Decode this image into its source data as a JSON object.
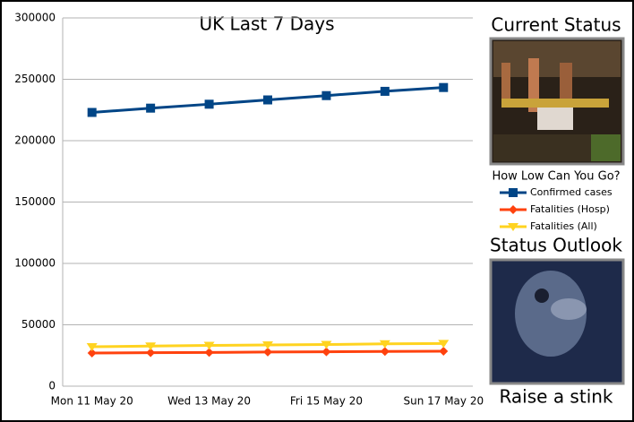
{
  "chart_data": {
    "type": "line",
    "title": "UK Last 7 Days",
    "categories": [
      "Mon 11 May 20",
      null,
      "Wed 13 May 20",
      null,
      "Fri 15 May 20",
      null,
      "Sun 17 May 20"
    ],
    "series": [
      {
        "name": "Confirmed cases",
        "color": "#004586",
        "marker": "square",
        "values": [
          223000,
          226500,
          229700,
          233200,
          236700,
          240200,
          243300
        ]
      },
      {
        "name": "Fatalities (Hosp)",
        "color": "#ff420e",
        "marker": "diamond",
        "values": [
          27000,
          27300,
          27500,
          27800,
          28000,
          28300,
          28500
        ]
      },
      {
        "name": "Fatalities (All)",
        "color": "#ffd320",
        "marker": "triangle-down",
        "values": [
          32100,
          32700,
          33200,
          33600,
          33900,
          34500,
          34800
        ]
      }
    ],
    "ylim": [
      0,
      300000
    ],
    "yticks": [
      0,
      50000,
      100000,
      150000,
      200000,
      250000,
      300000
    ],
    "grid": true
  },
  "side_panel": {
    "current_heading": "Current Status",
    "current_caption": "How Low Can You Go?",
    "outlook_heading": "Status Outlook",
    "outlook_caption": "Raise a stink"
  }
}
